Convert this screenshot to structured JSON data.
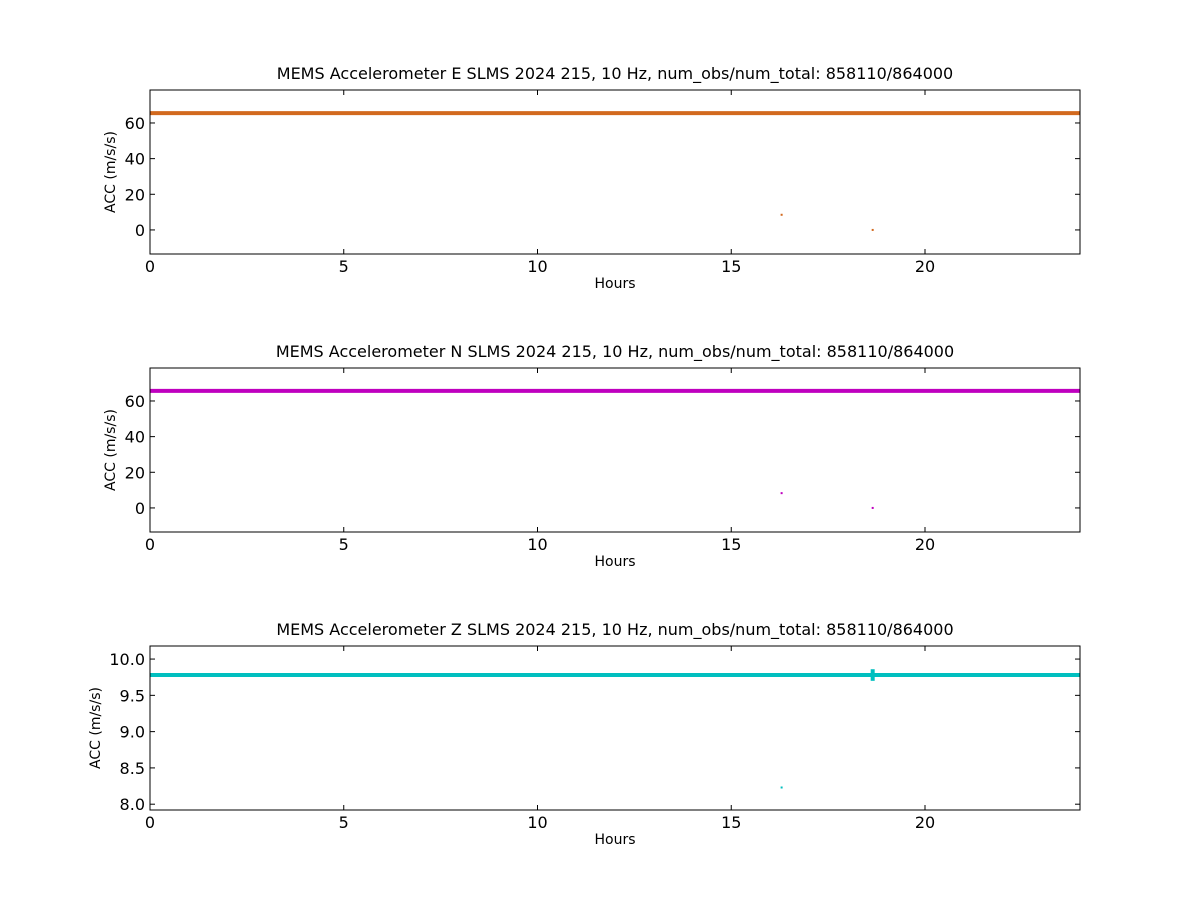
{
  "chart_data": [
    {
      "type": "scatter",
      "title": "MEMS Accelerometer E SLMS 2024 215, 10 Hz, num_obs/num_total: 858110/864000",
      "xlabel": "Hours",
      "ylabel": "ACC (m/s/s)",
      "xlim": [
        0,
        24
      ],
      "ylim": [
        -13.5,
        78.5
      ],
      "xticks": [
        0,
        5,
        10,
        15,
        20
      ],
      "yticks": [
        0,
        20,
        40,
        60
      ],
      "xtick_labels": [
        "0",
        "5",
        "10",
        "15",
        "20"
      ],
      "ytick_labels": [
        "0",
        "20",
        "40",
        "60"
      ],
      "grid": false,
      "color": "#d2691e",
      "series": [
        {
          "segments": [
            {
              "x": [
                0,
                24
              ],
              "y": [
                65.5,
                65.5
              ]
            }
          ],
          "points": [
            {
              "x": 16.3,
              "y": 8.5
            },
            {
              "x": 18.65,
              "y": 0
            }
          ]
        }
      ]
    },
    {
      "type": "scatter",
      "title": "MEMS Accelerometer N SLMS 2024 215, 10 Hz, num_obs/num_total: 858110/864000",
      "xlabel": "Hours",
      "ylabel": "ACC (m/s/s)",
      "xlim": [
        0,
        24
      ],
      "ylim": [
        -13.5,
        78.5
      ],
      "xticks": [
        0,
        5,
        10,
        15,
        20
      ],
      "yticks": [
        0,
        20,
        40,
        60
      ],
      "xtick_labels": [
        "0",
        "5",
        "10",
        "15",
        "20"
      ],
      "ytick_labels": [
        "0",
        "20",
        "40",
        "60"
      ],
      "grid": false,
      "color": "#bf00bf",
      "series": [
        {
          "segments": [
            {
              "x": [
                0,
                24
              ],
              "y": [
                65.7,
                65.7
              ]
            }
          ],
          "points": [
            {
              "x": 16.3,
              "y": 8.3
            },
            {
              "x": 18.65,
              "y": 0
            }
          ]
        }
      ]
    },
    {
      "type": "scatter",
      "title": "MEMS Accelerometer Z SLMS 2024 215, 10 Hz, num_obs/num_total: 858110/864000",
      "xlabel": "Hours",
      "ylabel": "ACC (m/s/s)",
      "xlim": [
        0,
        24
      ],
      "ylim": [
        7.92,
        10.18
      ],
      "xticks": [
        0,
        5,
        10,
        15,
        20
      ],
      "yticks": [
        8.0,
        8.5,
        9.0,
        9.5,
        10.0
      ],
      "xtick_labels": [
        "0",
        "5",
        "10",
        "15",
        "20"
      ],
      "ytick_labels": [
        "8.0",
        "8.5",
        "9.0",
        "9.5",
        "10.0"
      ],
      "grid": false,
      "color": "#00bfbf",
      "series": [
        {
          "segments": [
            {
              "x": [
                0,
                24
              ],
              "y": [
                9.78,
                9.78
              ]
            },
            {
              "x": [
                18.65,
                18.65
              ],
              "y": [
                9.7,
                9.86
              ]
            }
          ],
          "points": [
            {
              "x": 16.3,
              "y": 8.23
            }
          ]
        }
      ]
    }
  ]
}
